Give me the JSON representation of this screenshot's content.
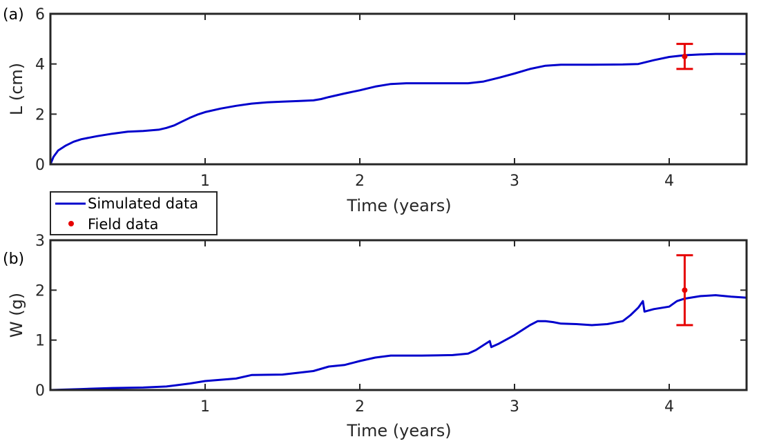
{
  "chart_data": [
    {
      "type": "line",
      "panel_label": "(a)",
      "xlabel": "Time (years)",
      "ylabel": "L (cm)",
      "xlim": [
        0,
        4.5
      ],
      "ylim": [
        0,
        6
      ],
      "xticks": [
        1,
        2,
        3,
        4
      ],
      "yticks": [
        0,
        2,
        4,
        6
      ],
      "series": [
        {
          "name": "Simulated data",
          "color": "#0000cc",
          "x": [
            0,
            0.02,
            0.05,
            0.1,
            0.15,
            0.2,
            0.3,
            0.4,
            0.5,
            0.6,
            0.7,
            0.75,
            0.8,
            0.85,
            0.9,
            0.95,
            1.0,
            1.1,
            1.2,
            1.3,
            1.4,
            1.5,
            1.6,
            1.7,
            1.75,
            1.8,
            1.9,
            2.0,
            2.1,
            2.2,
            2.3,
            2.5,
            2.7,
            2.8,
            2.9,
            3.0,
            3.1,
            3.2,
            3.3,
            3.5,
            3.7,
            3.8,
            3.9,
            4.0,
            4.1,
            4.2,
            4.3,
            4.5
          ],
          "y": [
            0,
            0.3,
            0.55,
            0.75,
            0.9,
            1.0,
            1.12,
            1.22,
            1.3,
            1.33,
            1.38,
            1.45,
            1.55,
            1.7,
            1.85,
            1.98,
            2.08,
            2.22,
            2.33,
            2.42,
            2.47,
            2.5,
            2.52,
            2.55,
            2.6,
            2.68,
            2.82,
            2.95,
            3.1,
            3.2,
            3.23,
            3.23,
            3.23,
            3.3,
            3.45,
            3.62,
            3.8,
            3.93,
            3.97,
            3.97,
            3.98,
            4.0,
            4.15,
            4.28,
            4.35,
            4.38,
            4.4,
            4.4
          ]
        },
        {
          "name": "Field data",
          "color": "#e60000",
          "x": [
            4.1
          ],
          "y": [
            4.3
          ],
          "err": [
            0.5
          ]
        }
      ]
    },
    {
      "type": "line",
      "panel_label": "(b)",
      "xlabel": "Time (years)",
      "ylabel": "W (g)",
      "xlim": [
        0,
        4.5
      ],
      "ylim": [
        0,
        3
      ],
      "xticks": [
        1,
        2,
        3,
        4
      ],
      "yticks": [
        0,
        1,
        2,
        3
      ],
      "series": [
        {
          "name": "Simulated data",
          "color": "#0000cc",
          "x": [
            0,
            0.2,
            0.4,
            0.6,
            0.75,
            0.9,
            1.0,
            1.2,
            1.3,
            1.5,
            1.7,
            1.8,
            1.9,
            2.0,
            2.1,
            2.2,
            2.4,
            2.6,
            2.7,
            2.75,
            2.8,
            2.84,
            2.85,
            2.9,
            3.0,
            3.1,
            3.15,
            3.2,
            3.25,
            3.3,
            3.4,
            3.5,
            3.6,
            3.7,
            3.75,
            3.8,
            3.83,
            3.84,
            3.9,
            4.0,
            4.05,
            4.1,
            4.2,
            4.3,
            4.4,
            4.5
          ],
          "y": [
            0,
            0.02,
            0.04,
            0.05,
            0.07,
            0.13,
            0.18,
            0.23,
            0.3,
            0.31,
            0.38,
            0.47,
            0.5,
            0.58,
            0.65,
            0.69,
            0.69,
            0.7,
            0.73,
            0.8,
            0.9,
            0.98,
            0.86,
            0.93,
            1.1,
            1.3,
            1.38,
            1.38,
            1.36,
            1.33,
            1.32,
            1.3,
            1.32,
            1.38,
            1.5,
            1.65,
            1.78,
            1.57,
            1.62,
            1.67,
            1.78,
            1.83,
            1.88,
            1.9,
            1.87,
            1.85
          ]
        },
        {
          "name": "Field data",
          "color": "#e60000",
          "x": [
            4.1
          ],
          "y": [
            2.0
          ],
          "err": [
            0.7
          ]
        }
      ]
    }
  ],
  "legend": {
    "placement": "between panels, left",
    "items": [
      {
        "label": "Simulated data",
        "style": "line",
        "color": "#0000cc"
      },
      {
        "label": "Field data",
        "style": "marker",
        "color": "#e60000"
      }
    ]
  }
}
